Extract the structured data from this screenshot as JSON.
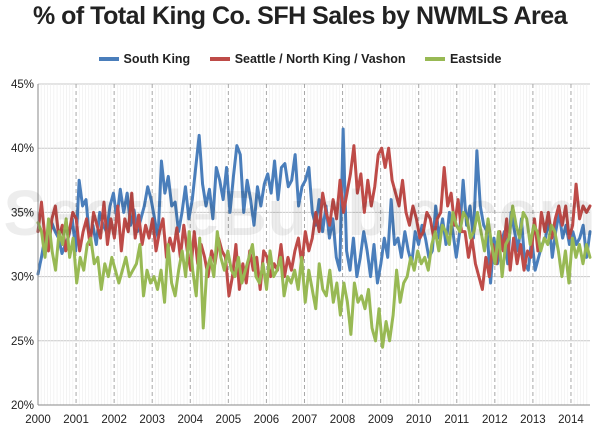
{
  "title": "% of Total King Co. SFH Sales by NWMLS Area",
  "watermark": "SeattleBubble.com",
  "chart_data": {
    "type": "line",
    "title": "% of Total King Co. SFH Sales by NWMLS Area",
    "xlabel": "",
    "ylabel": "",
    "x_start": "2000-01",
    "x_end": "2014-06",
    "x_ticks": [
      "2000",
      "2001",
      "2002",
      "2003",
      "2004",
      "2005",
      "2006",
      "2007",
      "2008",
      "2009",
      "2010",
      "2011",
      "2012",
      "2013",
      "2014"
    ],
    "y_ticks": [
      "20%",
      "25%",
      "30%",
      "35%",
      "40%",
      "45%"
    ],
    "ylim": [
      20,
      45
    ],
    "grid": {
      "horizontal": true,
      "vertical_dashed": true
    },
    "legend_position": "top-center",
    "series": [
      {
        "name": "South King",
        "color": "#4a7ebb",
        "values": [
          30.2,
          31.5,
          33.0,
          32.5,
          34.2,
          33.5,
          33.0,
          31.8,
          32.5,
          33.2,
          34.5,
          32.0,
          37.5,
          35.5,
          36.0,
          33.0,
          34.0,
          32.5,
          35.0,
          34.0,
          33.5,
          35.5,
          36.5,
          34.5,
          36.8,
          35.0,
          36.5,
          34.0,
          35.2,
          33.5,
          34.5,
          35.5,
          37.0,
          36.0,
          34.5,
          33.0,
          39.0,
          36.5,
          37.8,
          35.5,
          35.8,
          33.5,
          35.0,
          37.0,
          34.5,
          36.0,
          38.5,
          41.0,
          37.2,
          35.5,
          36.8,
          34.5,
          38.5,
          37.5,
          36.0,
          38.5,
          35.0,
          37.8,
          40.2,
          39.5,
          35.0,
          37.5,
          36.0,
          34.0,
          37.0,
          35.5,
          37.2,
          38.0,
          36.5,
          39.0,
          36.0,
          38.5,
          38.8,
          37.0,
          37.5,
          39.5,
          35.5,
          37.0,
          37.5,
          38.5,
          35.0,
          34.0,
          36.0,
          33.5,
          35.5,
          33.0,
          34.5,
          31.5,
          30.5,
          41.5,
          32.0,
          30.5,
          33.0,
          30.0,
          31.5,
          33.5,
          32.0,
          30.0,
          32.5,
          29.5,
          31.0,
          33.0,
          31.5,
          36.0,
          32.5,
          33.0,
          31.5,
          33.5,
          32.0,
          31.0,
          33.5,
          32.5,
          34.0,
          33.0,
          31.5,
          32.0,
          35.5,
          33.0,
          34.5,
          32.5,
          35.0,
          33.5,
          31.5,
          33.5,
          37.5,
          34.0,
          35.5,
          33.0,
          39.8,
          35.5,
          34.0,
          33.5,
          29.5,
          33.0,
          31.0,
          32.5,
          33.5,
          31.0,
          35.0,
          33.5,
          32.0,
          34.5,
          31.0,
          30.5,
          33.0,
          30.5,
          31.5,
          32.5,
          33.0,
          34.5,
          31.5,
          33.5,
          35.0,
          33.0,
          34.0,
          32.5,
          33.5,
          32.5,
          33.0,
          34.0,
          31.5,
          33.5
        ]
      },
      {
        "name": "Seattle / North King / Vashon",
        "color": "#be4b48",
        "values": [
          33.5,
          35.8,
          33.0,
          32.0,
          34.5,
          35.5,
          33.0,
          34.0,
          32.0,
          33.5,
          35.0,
          34.5,
          32.0,
          33.5,
          34.5,
          32.5,
          35.0,
          34.0,
          33.0,
          35.8,
          32.5,
          34.5,
          33.0,
          35.5,
          32.0,
          34.5,
          33.5,
          36.5,
          33.0,
          34.8,
          32.5,
          34.0,
          33.0,
          34.5,
          32.0,
          33.5,
          34.5,
          31.5,
          33.0,
          32.0,
          33.8,
          31.5,
          34.0,
          32.0,
          30.5,
          33.5,
          31.0,
          32.5,
          31.5,
          30.0,
          32.0,
          31.0,
          33.0,
          32.0,
          31.5,
          28.5,
          30.0,
          32.5,
          29.0,
          31.0,
          29.5,
          32.0,
          30.5,
          31.5,
          29.0,
          32.0,
          31.5,
          30.0,
          31.0,
          30.5,
          32.5,
          30.0,
          31.5,
          30.5,
          32.0,
          33.0,
          31.0,
          33.5,
          32.0,
          33.0,
          35.0,
          33.5,
          36.5,
          35.0,
          34.0,
          36.0,
          34.5,
          37.5,
          35.0,
          36.5,
          38.0,
          40.2,
          36.5,
          38.0,
          35.0,
          37.5,
          35.5,
          37.0,
          39.5,
          40.0,
          38.5,
          40.0,
          37.5,
          36.5,
          35.5,
          37.5,
          35.0,
          34.0,
          35.5,
          34.5,
          33.0,
          33.5,
          35.0,
          34.5,
          33.0,
          34.5,
          35.0,
          38.5,
          35.5,
          36.5,
          34.0,
          36.0,
          33.5,
          33.5,
          31.5,
          33.0,
          31.0,
          30.0,
          29.0,
          31.5,
          30.0,
          32.5,
          31.0,
          33.5,
          32.0,
          34.5,
          30.5,
          33.0,
          31.0,
          32.5,
          30.5,
          32.0,
          31.5,
          34.5,
          32.0,
          35.0,
          33.5,
          35.0,
          33.0,
          34.5,
          35.5,
          34.0,
          35.5,
          33.0,
          34.0,
          37.2,
          34.5,
          35.5,
          35.0,
          35.5
        ]
      },
      {
        "name": "Eastside",
        "color": "#98b954",
        "values": [
          34.2,
          33.5,
          31.5,
          34.5,
          32.0,
          30.5,
          33.5,
          32.5,
          34.5,
          31.5,
          33.0,
          29.5,
          31.5,
          30.5,
          32.5,
          33.0,
          31.0,
          31.5,
          29.0,
          31.0,
          30.0,
          31.5,
          30.5,
          29.5,
          30.5,
          31.5,
          30.0,
          30.5,
          31.0,
          32.5,
          28.5,
          30.5,
          29.5,
          30.0,
          29.0,
          30.5,
          28.0,
          32.5,
          29.5,
          28.5,
          30.5,
          32.0,
          30.0,
          33.5,
          30.5,
          28.5,
          33.0,
          26.0,
          30.5,
          31.5,
          30.0,
          33.5,
          31.5,
          30.5,
          32.0,
          30.5,
          30.0,
          31.5,
          29.5,
          30.5,
          31.5,
          32.5,
          30.0,
          29.5,
          31.0,
          29.0,
          32.0,
          30.0,
          30.5,
          31.5,
          28.5,
          30.0,
          29.5,
          30.5,
          29.0,
          31.5,
          28.0,
          30.5,
          29.0,
          27.5,
          31.0,
          29.0,
          28.5,
          30.5,
          28.0,
          29.5,
          27.0,
          29.5,
          28.0,
          25.5,
          29.5,
          28.0,
          28.5,
          27.5,
          29.0,
          26.0,
          25.0,
          27.5,
          24.5,
          26.5,
          25.0,
          27.0,
          30.5,
          28.0,
          29.5,
          30.0,
          31.5,
          30.5,
          32.0,
          31.0,
          31.5,
          30.5,
          32.5,
          33.5,
          32.0,
          34.0,
          33.5,
          32.5,
          35.0,
          34.0,
          33.5,
          35.0,
          34.5,
          33.0,
          33.5,
          35.0,
          33.5,
          32.0,
          34.5,
          32.5,
          31.0,
          33.5,
          30.0,
          32.5,
          33.0,
          35.5,
          34.0,
          33.0,
          35.0,
          34.5,
          32.5,
          34.0,
          33.5,
          32.0,
          33.0,
          32.5,
          34.0,
          33.5,
          32.0,
          30.0,
          32.0,
          29.5,
          33.0,
          31.5,
          32.5,
          31.0,
          32.5,
          31.5
        ]
      }
    ]
  }
}
